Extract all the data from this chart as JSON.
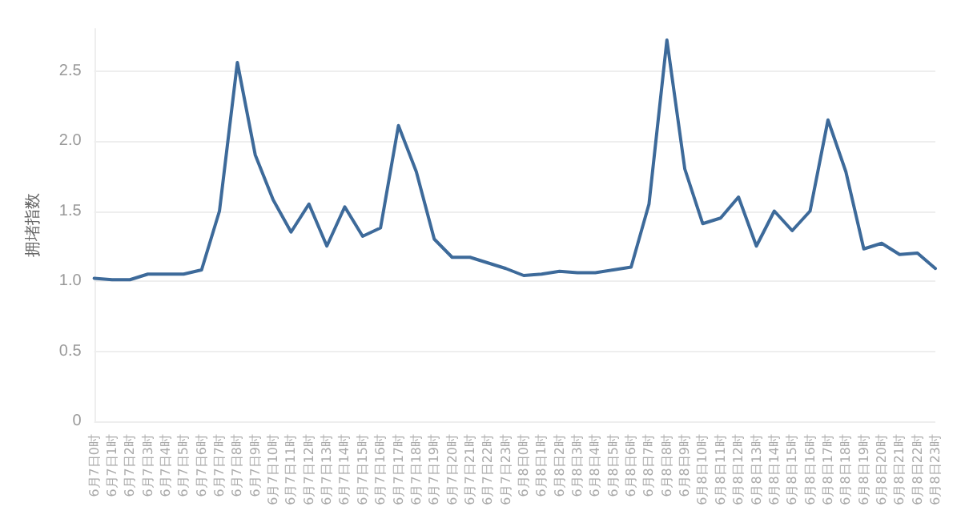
{
  "chart_data": {
    "type": "line",
    "ylabel": "拥堵指数",
    "categories": [
      "6月7日0时",
      "6月7日1时",
      "6月7日2时",
      "6月7日3时",
      "6月7日4时",
      "6月7日5时",
      "6月7日6时",
      "6月7日7时",
      "6月7日8时",
      "6月7日9时",
      "6月7日10时",
      "6月7日11时",
      "6月7日12时",
      "6月7日13时",
      "6月7日14时",
      "6月7日15时",
      "6月7日16时",
      "6月7日17时",
      "6月7日18时",
      "6月7日19时",
      "6月7日20时",
      "6月7日21时",
      "6月7日22时",
      "6月7日23时",
      "6月8日0时",
      "6月8日1时",
      "6月8日2时",
      "6月8日3时",
      "6月8日4时",
      "6月8日5时",
      "6月8日6时",
      "6月8日7时",
      "6月8日8时",
      "6月8日9时",
      "6月8日10时",
      "6月8日11时",
      "6月8日12时",
      "6月8日13时",
      "6月8日14时",
      "6月8日15时",
      "6月8日16时",
      "6月8日17时",
      "6月8日18时",
      "6月8日19时",
      "6月8日20时",
      "6月8日21时",
      "6月8日22时",
      "6月8日23时"
    ],
    "series": [
      {
        "color": "#3d6a9a",
        "values": [
          1.02,
          1.01,
          1.01,
          1.05,
          1.05,
          1.05,
          1.08,
          1.5,
          2.56,
          1.9,
          1.58,
          1.35,
          1.55,
          1.25,
          1.53,
          1.32,
          1.38,
          2.11,
          1.78,
          1.3,
          1.17,
          1.17,
          1.13,
          1.09,
          1.04,
          1.05,
          1.07,
          1.06,
          1.06,
          1.08,
          1.1,
          1.55,
          2.72,
          1.8,
          1.41,
          1.45,
          1.6,
          1.25,
          1.5,
          1.36,
          1.5,
          2.15,
          1.78,
          1.23,
          1.27,
          1.19,
          1.2,
          1.09
        ]
      }
    ],
    "ylim": [
      0,
      2.8
    ],
    "yticks": [
      {
        "value": 0,
        "label": "0"
      },
      {
        "value": 0.5,
        "label": "0.5"
      },
      {
        "value": 1,
        "label": "1.0"
      },
      {
        "value": 1.5,
        "label": "1.5"
      },
      {
        "value": 2,
        "label": "2.0"
      },
      {
        "value": 2.5,
        "label": "2.5"
      }
    ],
    "grid": "y",
    "marker": "none",
    "line_style": "solid"
  }
}
